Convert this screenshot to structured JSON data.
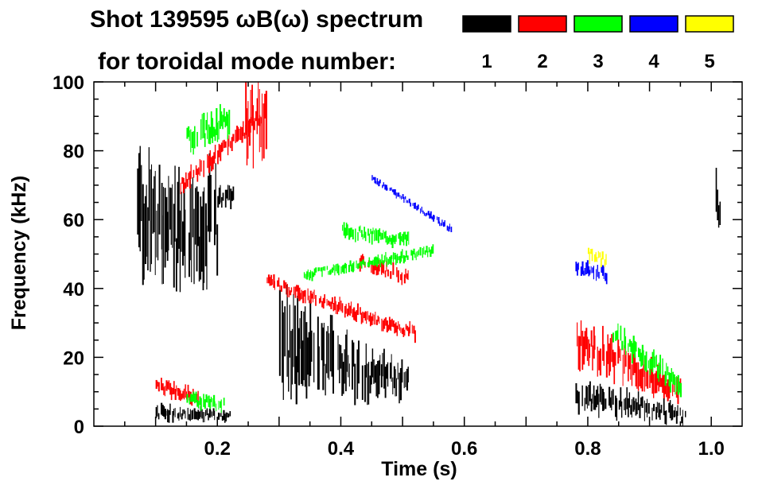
{
  "chart_data": {
    "type": "heatmap",
    "title_line1": "Shot 139595 ωB(ω) spectrum",
    "title_line2": "for toroidal mode number:",
    "xlabel": "Time (s)",
    "ylabel": "Frequency (kHz)",
    "xlim": [
      0.0,
      1.05
    ],
    "ylim": [
      0,
      100
    ],
    "x_ticks": [
      {
        "value": 0.2,
        "label": "0.2"
      },
      {
        "value": 0.4,
        "label": "0.4"
      },
      {
        "value": 0.6,
        "label": "0.6"
      },
      {
        "value": 0.8,
        "label": "0.8"
      },
      {
        "value": 1.0,
        "label": "1.0"
      }
    ],
    "y_ticks": [
      {
        "value": 0,
        "label": "0"
      },
      {
        "value": 20,
        "label": "20"
      },
      {
        "value": 40,
        "label": "40"
      },
      {
        "value": 60,
        "label": "60"
      },
      {
        "value": 80,
        "label": "80"
      },
      {
        "value": 100,
        "label": "100"
      }
    ],
    "legend": [
      {
        "mode": "1",
        "color": "#000000"
      },
      {
        "mode": "2",
        "color": "#ff0000"
      },
      {
        "mode": "3",
        "color": "#00ff00"
      },
      {
        "mode": "4",
        "color": "#0000ff"
      },
      {
        "mode": "5",
        "color": "#ffff00"
      }
    ],
    "regions": [
      {
        "mode": 1,
        "t": [
          0.07,
          0.11
        ],
        "f": [
          0.0,
          0.0
        ],
        "w": [
          35,
          30
        ],
        "center": [
          62,
          60
        ]
      },
      {
        "mode": 1,
        "t": [
          0.11,
          0.2
        ],
        "f": [
          0.0,
          0.0
        ],
        "w": [
          30,
          30
        ],
        "center": [
          55,
          58
        ]
      },
      {
        "mode": 1,
        "t": [
          0.2,
          0.225
        ],
        "f": [
          0.0,
          0.0
        ],
        "w": [
          6,
          6
        ],
        "center": [
          66,
          68
        ]
      },
      {
        "mode": 1,
        "t": [
          0.1,
          0.22
        ],
        "f": [
          0.0,
          0.0
        ],
        "w": [
          4,
          3
        ],
        "center": [
          4,
          3
        ]
      },
      {
        "mode": 1,
        "t": [
          0.3,
          0.51
        ],
        "f": [
          0.0,
          0.0
        ],
        "w": [
          28,
          8
        ],
        "center": [
          22,
          13
        ]
      },
      {
        "mode": 1,
        "t": [
          0.78,
          0.96
        ],
        "f": [
          0.0,
          0.0
        ],
        "w": [
          8,
          5
        ],
        "center": [
          9,
          3
        ]
      },
      {
        "mode": 1,
        "t": [
          1.005,
          1.015
        ],
        "f": [
          0.0,
          0.0
        ],
        "w": [
          14,
          14
        ],
        "center": [
          65,
          65
        ]
      },
      {
        "mode": 2,
        "t": [
          0.14,
          0.27
        ],
        "f": [
          0.0,
          0.0
        ],
        "w": [
          5,
          5
        ],
        "center": [
          70,
          90
        ]
      },
      {
        "mode": 2,
        "t": [
          0.245,
          0.28
        ],
        "f": [
          0.0,
          0.0
        ],
        "w": [
          20,
          20
        ],
        "center": [
          88,
          90
        ]
      },
      {
        "mode": 2,
        "t": [
          0.28,
          0.52
        ],
        "f": [
          0.0,
          0.0
        ],
        "w": [
          4,
          4
        ],
        "center": [
          42,
          27
        ]
      },
      {
        "mode": 2,
        "t": [
          0.43,
          0.51
        ],
        "f": [
          0.0,
          0.0
        ],
        "w": [
          4,
          4
        ],
        "center": [
          48,
          43
        ]
      },
      {
        "mode": 2,
        "t": [
          0.78,
          0.95
        ],
        "f": [
          0.0,
          0.0
        ],
        "w": [
          12,
          6
        ],
        "center": [
          25,
          10
        ]
      },
      {
        "mode": 2,
        "t": [
          0.1,
          0.17
        ],
        "f": [
          0.0,
          0.0
        ],
        "w": [
          4,
          4
        ],
        "center": [
          12,
          8
        ]
      },
      {
        "mode": 3,
        "t": [
          0.15,
          0.22
        ],
        "f": [
          0.0,
          0.0
        ],
        "w": [
          8,
          8
        ],
        "center": [
          83,
          89
        ]
      },
      {
        "mode": 3,
        "t": [
          0.4,
          0.51
        ],
        "f": [
          0.0,
          0.0
        ],
        "w": [
          4,
          4
        ],
        "center": [
          57,
          54
        ]
      },
      {
        "mode": 3,
        "t": [
          0.34,
          0.55
        ],
        "f": [
          0.0,
          0.0
        ],
        "w": [
          3,
          3
        ],
        "center": [
          44,
          51
        ]
      },
      {
        "mode": 3,
        "t": [
          0.84,
          0.95
        ],
        "f": [
          0.0,
          0.0
        ],
        "w": [
          6,
          6
        ],
        "center": [
          27,
          12
        ]
      },
      {
        "mode": 3,
        "t": [
          0.15,
          0.21
        ],
        "f": [
          0.0,
          0.0
        ],
        "w": [
          4,
          4
        ],
        "center": [
          8,
          6
        ]
      },
      {
        "mode": 4,
        "t": [
          0.45,
          0.58
        ],
        "f": [
          0.0,
          0.0
        ],
        "w": [
          2,
          2
        ],
        "center": [
          72,
          57
        ]
      },
      {
        "mode": 4,
        "t": [
          0.78,
          0.83
        ],
        "f": [
          0.0,
          0.0
        ],
        "w": [
          4,
          4
        ],
        "center": [
          46,
          44
        ]
      },
      {
        "mode": 5,
        "t": [
          0.8,
          0.83
        ],
        "f": [
          0.0,
          0.0
        ],
        "w": [
          4,
          4
        ],
        "center": [
          50,
          48
        ]
      }
    ]
  }
}
